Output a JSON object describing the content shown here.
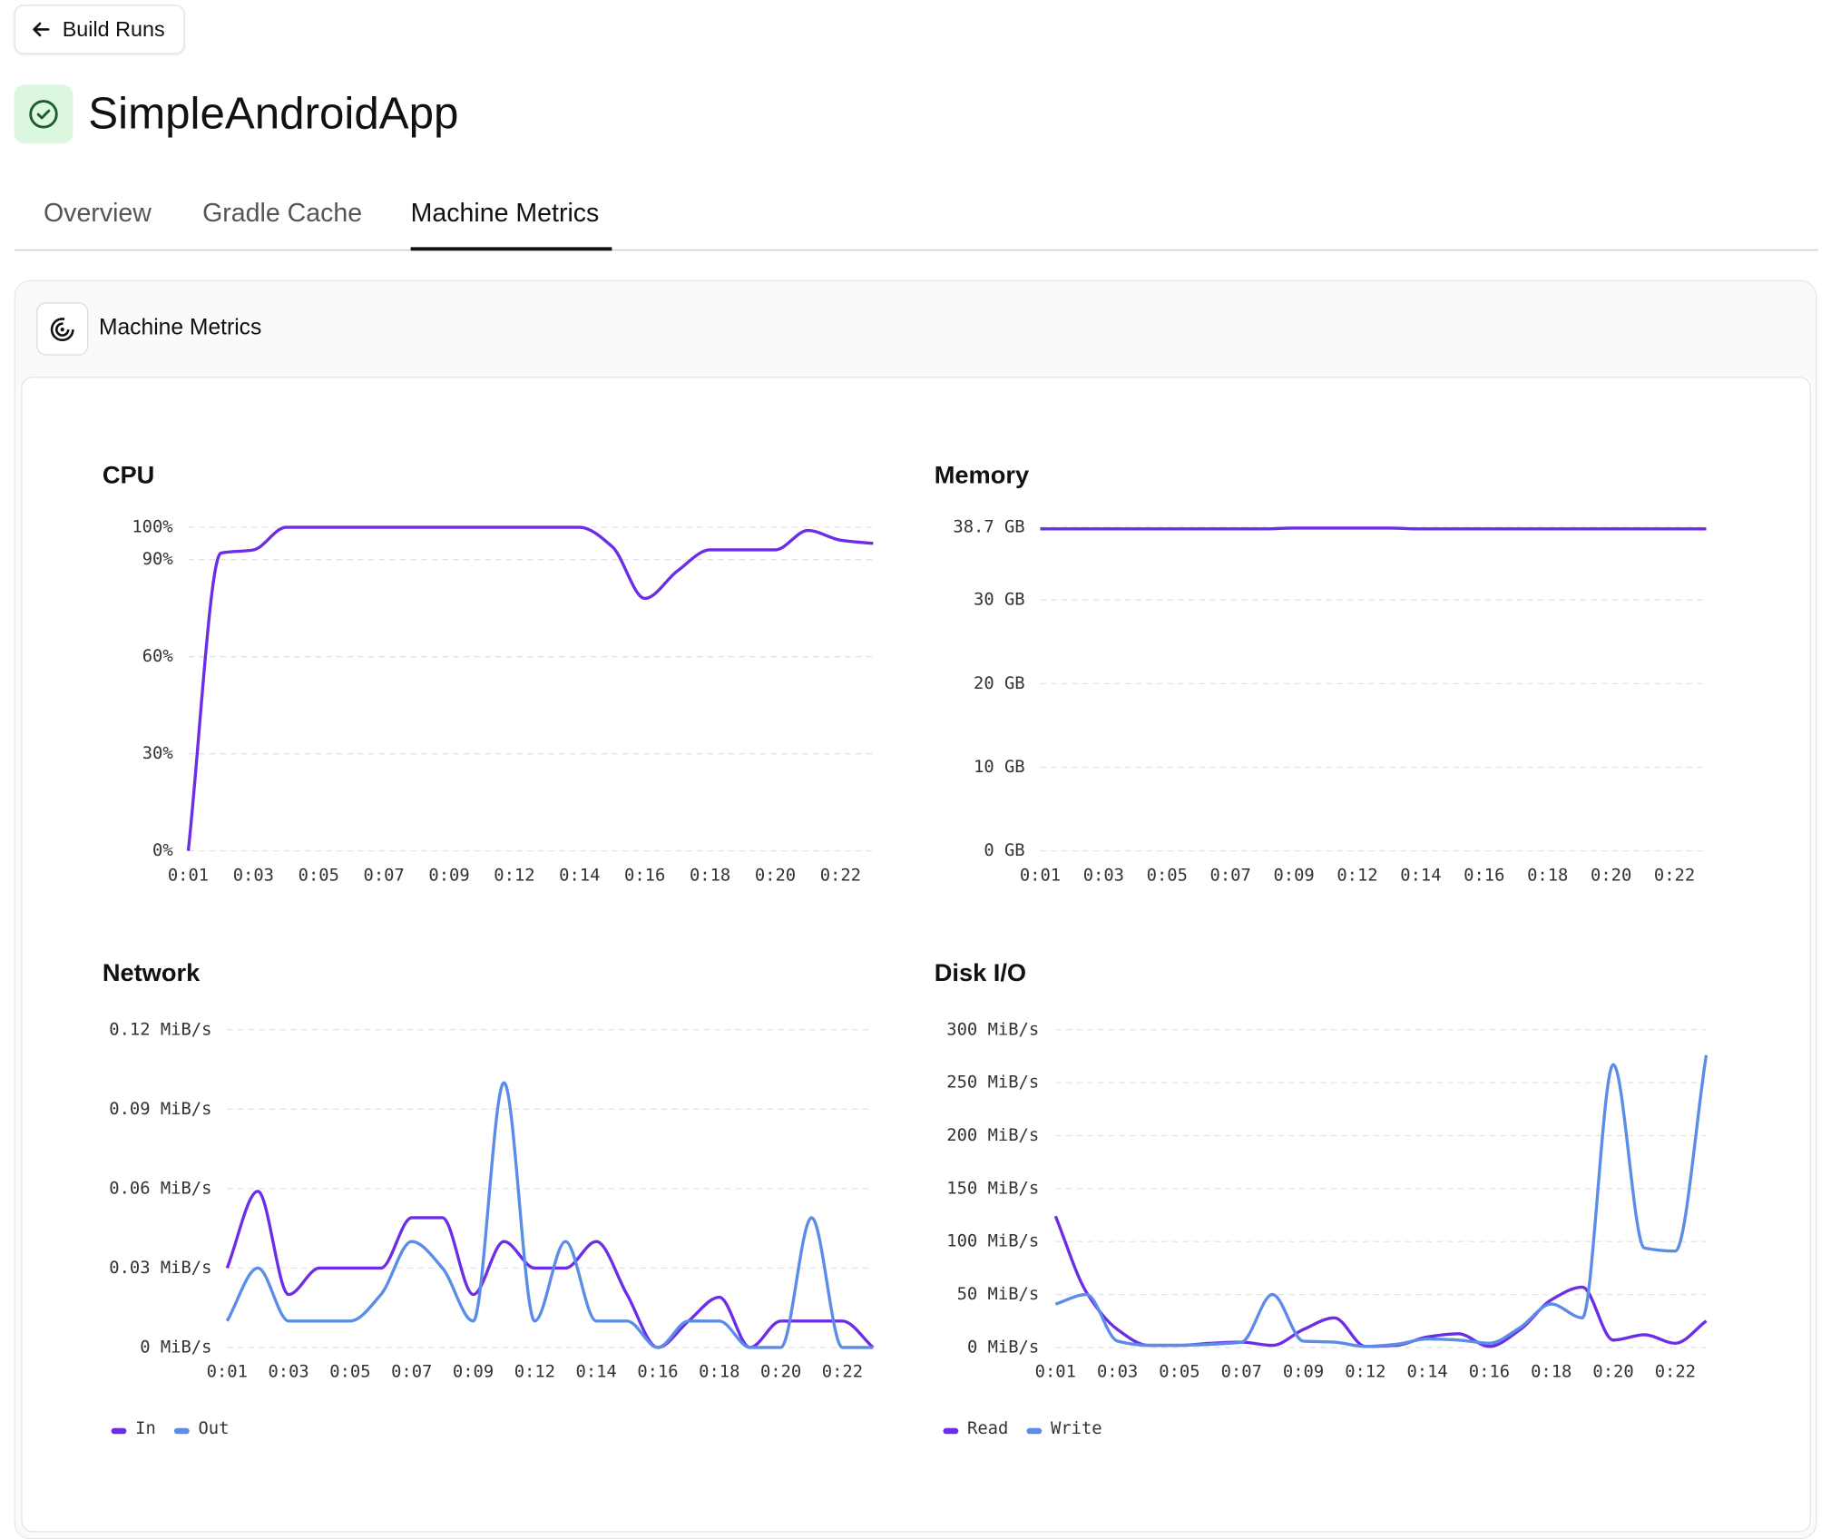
{
  "header": {
    "back": "Build Runs",
    "title": "SimpleAndroidApp"
  },
  "tabs": [
    "Overview",
    "Gradle Cache",
    "Machine Metrics"
  ],
  "card": {
    "title": "Machine Metrics"
  },
  "chart_data": [
    {
      "type": "line",
      "title": "CPU",
      "categories": [
        "0:01",
        null,
        "0:03",
        null,
        "0:05",
        null,
        "0:07",
        null,
        "0:09",
        null,
        "0:12",
        null,
        "0:14",
        null,
        "0:16",
        null,
        "0:18",
        null,
        "0:20",
        null,
        "0:22",
        null
      ],
      "values": [
        0,
        92,
        93,
        100,
        100,
        100,
        100,
        100,
        100,
        100,
        100,
        100,
        100,
        94,
        78,
        86.5,
        93,
        93,
        93,
        99,
        96,
        95
      ],
      "color": "#6b2ee6",
      "ylim": [
        0,
        100
      ],
      "yticks": [
        {
          "value": 0,
          "label": "0%"
        },
        {
          "value": 30,
          "label": "30%"
        },
        {
          "value": 60,
          "label": "60%"
        },
        {
          "value": 90,
          "label": "90%"
        },
        {
          "value": 100,
          "label": "100%"
        }
      ],
      "grid": true
    },
    {
      "type": "line",
      "title": "Memory",
      "categories": [
        "0:01",
        null,
        "0:03",
        null,
        "0:05",
        null,
        "0:07",
        null,
        "0:09",
        null,
        "0:12",
        null,
        "0:14",
        null,
        "0:16",
        null,
        "0:18",
        null,
        "0:20",
        null,
        "0:22",
        null
      ],
      "values": [
        38.5,
        38.5,
        38.5,
        38.5,
        38.5,
        38.5,
        38.5,
        38.5,
        38.6,
        38.6,
        38.6,
        38.6,
        38.5,
        38.5,
        38.5,
        38.5,
        38.5,
        38.5,
        38.5,
        38.5,
        38.5,
        38.5
      ],
      "color": "#6b2ee6",
      "ylim": [
        0,
        38.7
      ],
      "yticks": [
        {
          "value": 0,
          "label": "0 GB"
        },
        {
          "value": 10,
          "label": "10 GB"
        },
        {
          "value": 20,
          "label": "20 GB"
        },
        {
          "value": 30,
          "label": "30 GB"
        },
        {
          "value": 38.7,
          "label": "38.7 GB"
        }
      ],
      "grid": true
    },
    {
      "type": "line",
      "title": "Network",
      "categories": [
        "0:01",
        null,
        "0:03",
        null,
        "0:05",
        null,
        "0:07",
        null,
        "0:09",
        null,
        "0:12",
        null,
        "0:14",
        null,
        "0:16",
        null,
        "0:18",
        null,
        "0:20",
        null,
        "0:22",
        null
      ],
      "series": [
        {
          "name": "In",
          "color": "#6b2ee6",
          "values": [
            0.03,
            0.059,
            0.02,
            0.03,
            0.03,
            0.03,
            0.049,
            0.049,
            0.02,
            0.04,
            0.03,
            0.03,
            0.04,
            0.02,
            0,
            0.01,
            0.019,
            0,
            0.01,
            0.01,
            0.01,
            0
          ]
        },
        {
          "name": "Out",
          "color": "#5a8ce8",
          "values": [
            0.01,
            0.03,
            0.01,
            0.01,
            0.01,
            0.02,
            0.04,
            0.03,
            0.01,
            0.1,
            0.01,
            0.04,
            0.01,
            0.01,
            0,
            0.01,
            0.01,
            0,
            0,
            0.049,
            0,
            0
          ]
        }
      ],
      "ylim": [
        0,
        0.12
      ],
      "yticks": [
        {
          "value": 0,
          "label": "0 MiB/s"
        },
        {
          "value": 0.03,
          "label": "0.03 MiB/s"
        },
        {
          "value": 0.06,
          "label": "0.06 MiB/s"
        },
        {
          "value": 0.09,
          "label": "0.09 MiB/s"
        },
        {
          "value": 0.12,
          "label": "0.12 MiB/s"
        }
      ],
      "grid": true,
      "legend": "bottom-left"
    },
    {
      "type": "line",
      "title": "Disk I/O",
      "categories": [
        "0:01",
        null,
        "0:03",
        null,
        "0:05",
        null,
        "0:07",
        null,
        "0:09",
        null,
        "0:12",
        null,
        "0:14",
        null,
        "0:16",
        null,
        "0:18",
        null,
        "0:20",
        null,
        "0:22",
        null
      ],
      "series": [
        {
          "name": "Read",
          "color": "#6b2ee6",
          "values": [
            124,
            52,
            17,
            2,
            2,
            4,
            5,
            2,
            17,
            28,
            1,
            2,
            10,
            13,
            1,
            17,
            45,
            57,
            7,
            12,
            4,
            25
          ]
        },
        {
          "name": "Write",
          "color": "#5a8ce8",
          "values": [
            41,
            50,
            6,
            2,
            2,
            3,
            5,
            50,
            6,
            5,
            1,
            3,
            8,
            7,
            4,
            19,
            41,
            28,
            267,
            94,
            91,
            276
          ]
        }
      ],
      "ylim": [
        0,
        300
      ],
      "yticks": [
        {
          "value": 0,
          "label": "0 MiB/s"
        },
        {
          "value": 50,
          "label": "50 MiB/s"
        },
        {
          "value": 100,
          "label": "100 MiB/s"
        },
        {
          "value": 150,
          "label": "150 MiB/s"
        },
        {
          "value": 200,
          "label": "200 MiB/s"
        },
        {
          "value": 250,
          "label": "250 MiB/s"
        },
        {
          "value": 300,
          "label": "300 MiB/s"
        }
      ],
      "grid": true,
      "legend": "bottom-left"
    }
  ]
}
